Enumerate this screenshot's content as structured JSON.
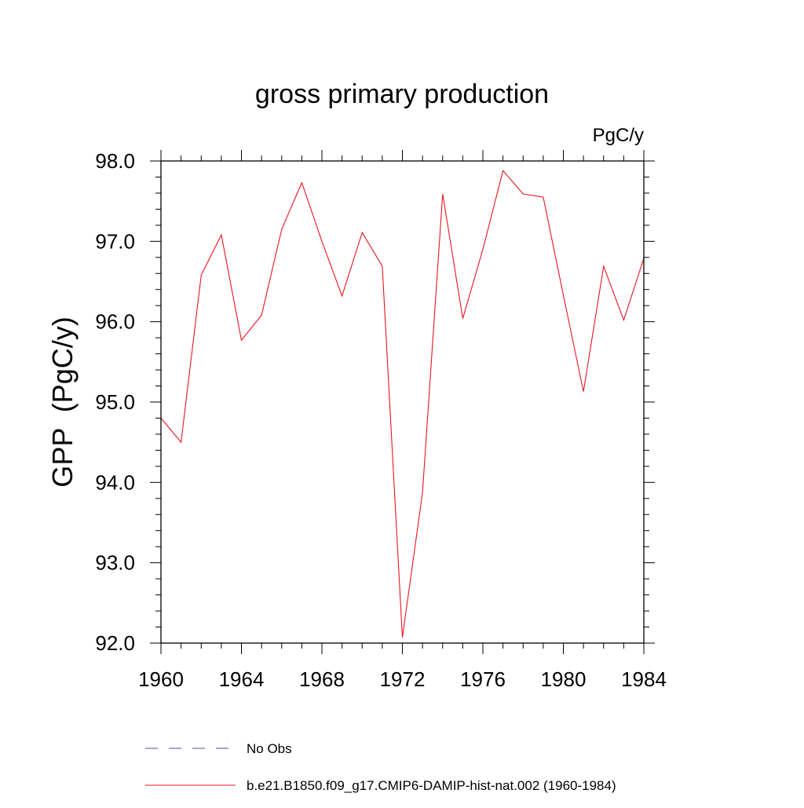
{
  "chart_data": {
    "type": "line",
    "title": "gross primary production",
    "units_label": "PgC/y",
    "ylabel": "GPP  (PgC/y)",
    "xlabel": "",
    "xlim": [
      1960,
      1984
    ],
    "ylim": [
      92.0,
      98.0
    ],
    "x_ticks": [
      1960,
      1964,
      1968,
      1972,
      1976,
      1980,
      1984
    ],
    "x_tick_labels": [
      "1960",
      "1964",
      "1968",
      "1972",
      "1976",
      "1980",
      "1984"
    ],
    "y_ticks": [
      92.0,
      93.0,
      94.0,
      95.0,
      96.0,
      97.0,
      98.0
    ],
    "y_tick_labels": [
      "92.0",
      "93.0",
      "94.0",
      "95.0",
      "96.0",
      "97.0",
      "98.0"
    ],
    "grid": false,
    "legend_position": "bottom",
    "series": [
      {
        "name": "b.e21.B1850.f09_g17.CMIP6-DAMIP-hist-nat.002 (1960-1984)",
        "color": "#e8141c",
        "style": "solid",
        "x": [
          1960,
          1961,
          1962,
          1963,
          1964,
          1965,
          1966,
          1967,
          1968,
          1969,
          1970,
          1971,
          1972,
          1973,
          1974,
          1975,
          1976,
          1977,
          1978,
          1979,
          1980,
          1981,
          1982,
          1983,
          1984
        ],
        "y": [
          94.8,
          94.5,
          96.58,
          97.08,
          95.77,
          96.08,
          97.15,
          97.73,
          97.0,
          96.32,
          97.11,
          96.69,
          92.07,
          93.87,
          97.59,
          96.04,
          96.9,
          97.88,
          97.59,
          97.55,
          96.33,
          95.13,
          96.69,
          96.02,
          96.79
        ]
      }
    ],
    "legend": [
      {
        "label": "No Obs",
        "color": "#5548a8",
        "style": "dashed"
      },
      {
        "label": "b.e21.B1850.f09_g17.CMIP6-DAMIP-hist-nat.002 (1960-1984)",
        "color": "#e8141c",
        "style": "solid"
      }
    ]
  }
}
